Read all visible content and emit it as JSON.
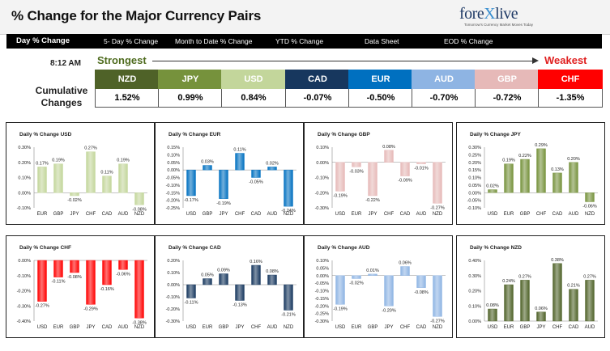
{
  "header": {
    "title": "% Change for the Major Currency Pairs",
    "logo_text_main": "fore",
    "logo_text_x": "X",
    "logo_text_end": "live",
    "logo_tagline": "Tomorrow's Currency Market Moves Today"
  },
  "tabs": [
    {
      "label": "Day % Change",
      "active": true
    },
    {
      "label": "5- Day % Change",
      "active": false
    },
    {
      "label": "Month to Date % Change",
      "active": false
    },
    {
      "label": "YTD % Change",
      "active": false
    },
    {
      "label": "Data Sheet",
      "active": false
    },
    {
      "label": "EOD % Change",
      "active": false
    }
  ],
  "time": "8:12 AM",
  "strongest_label": "Strongest",
  "weakest_label": "Weakest",
  "cumulative_label": "Cumulative Changes",
  "currencies": [
    {
      "name": "NZD",
      "value": "1.52%",
      "color": "#4f6228"
    },
    {
      "name": "JPY",
      "value": "0.99%",
      "color": "#76923c"
    },
    {
      "name": "USD",
      "value": "0.84%",
      "color": "#c3d69b"
    },
    {
      "name": "CAD",
      "value": "-0.07%",
      "color": "#17375e"
    },
    {
      "name": "EUR",
      "value": "-0.50%",
      "color": "#0070c0"
    },
    {
      "name": "AUD",
      "value": "-0.70%",
      "color": "#8eb4e3"
    },
    {
      "name": "GBP",
      "value": "-0.72%",
      "color": "#e6b9b8"
    },
    {
      "name": "CHF",
      "value": "-1.35%",
      "color": "#ff0000"
    }
  ],
  "chart_data": [
    {
      "type": "bar",
      "title": "Daily % Change USD",
      "categories": [
        "EUR",
        "GBP",
        "JPY",
        "CHF",
        "CAD",
        "AUD",
        "NZD"
      ],
      "values": [
        0.17,
        0.19,
        -0.02,
        0.27,
        0.11,
        0.19,
        -0.08
      ],
      "labels": [
        "0.17%",
        "0.19%",
        "-0.02%",
        "0.27%",
        "0.11%",
        "0.19%",
        "-0.08%"
      ],
      "ticks": [
        "0.30%",
        "0.20%",
        "0.10%",
        "0.00%",
        "-0.10%"
      ],
      "ylim": [
        -0.1,
        0.3
      ],
      "color": "#c3d69b"
    },
    {
      "type": "bar",
      "title": "Daily % Change EUR",
      "categories": [
        "USD",
        "GBP",
        "JPY",
        "CHF",
        "CAD",
        "AUD",
        "NZD"
      ],
      "values": [
        -0.17,
        0.03,
        -0.19,
        0.11,
        -0.05,
        0.02,
        -0.24
      ],
      "labels": [
        "-0.17%",
        "0.03%",
        "-0.19%",
        "0.11%",
        "-0.05%",
        "0.02%",
        "-0.24%"
      ],
      "ticks": [
        "0.15%",
        "0.10%",
        "0.05%",
        "0.00%",
        "-0.05%",
        "-0.10%",
        "-0.15%",
        "-0.20%",
        "-0.25%"
      ],
      "ylim": [
        -0.25,
        0.15
      ],
      "color": "#0070c0"
    },
    {
      "type": "bar",
      "title": "Daily % Change GBP",
      "categories": [
        "USD",
        "EUR",
        "JPY",
        "CHF",
        "CAD",
        "AUD",
        "NZD"
      ],
      "values": [
        -0.19,
        -0.03,
        -0.22,
        0.08,
        -0.09,
        -0.01,
        -0.27
      ],
      "labels": [
        "-0.19%",
        "-0.03%",
        "-0.22%",
        "0.08%",
        "-0.09%",
        "-0.01%",
        "-0.27%"
      ],
      "ticks": [
        "0.10%",
        "0.00%",
        "-0.10%",
        "-0.20%",
        "-0.30%"
      ],
      "ylim": [
        -0.3,
        0.1
      ],
      "color": "#e6b9b8"
    },
    {
      "type": "bar",
      "title": "Daily % Change JPY",
      "categories": [
        "USD",
        "EUR",
        "GBP",
        "CHF",
        "CAD",
        "AUD",
        "NZD"
      ],
      "values": [
        0.02,
        0.19,
        0.22,
        0.29,
        0.13,
        0.2,
        -0.06
      ],
      "labels": [
        "0.02%",
        "0.19%",
        "0.22%",
        "0.29%",
        "0.13%",
        "0.20%",
        "-0.06%"
      ],
      "ticks": [
        "0.30%",
        "0.25%",
        "0.20%",
        "0.15%",
        "0.10%",
        "0.05%",
        "0.00%",
        "-0.05%",
        "-0.10%"
      ],
      "ylim": [
        -0.1,
        0.3
      ],
      "color": "#76923c"
    },
    {
      "type": "bar",
      "title": "Daily % Change CHF",
      "categories": [
        "USD",
        "EUR",
        "GBP",
        "JPY",
        "CAD",
        "AUD",
        "NZD"
      ],
      "values": [
        -0.27,
        -0.11,
        -0.08,
        -0.29,
        -0.16,
        -0.06,
        -0.38
      ],
      "labels": [
        "-0.27%",
        "-0.11%",
        "-0.08%",
        "-0.29%",
        "-0.16%",
        "-0.06%",
        "-0.38%"
      ],
      "ticks": [
        "0.00%",
        "-0.10%",
        "-0.20%",
        "-0.30%",
        "-0.40%"
      ],
      "ylim": [
        -0.4,
        0.0
      ],
      "color": "#ff0000"
    },
    {
      "type": "bar",
      "title": "Daily % Change CAD",
      "categories": [
        "USD",
        "EUR",
        "GBP",
        "JPY",
        "CHF",
        "AUD",
        "NZD"
      ],
      "values": [
        -0.11,
        0.05,
        0.09,
        -0.13,
        0.16,
        0.08,
        -0.21
      ],
      "labels": [
        "-0.11%",
        "0.05%",
        "0.09%",
        "-0.13%",
        "0.16%",
        "0.08%",
        "-0.21%"
      ],
      "ticks": [
        "0.20%",
        "0.10%",
        "0.00%",
        "-0.10%",
        "-0.20%",
        "-0.30%"
      ],
      "ylim": [
        -0.3,
        0.2
      ],
      "color": "#17375e"
    },
    {
      "type": "bar",
      "title": "Daily % Change AUD",
      "categories": [
        "USD",
        "EUR",
        "GBP",
        "JPY",
        "CHF",
        "CAD",
        "NZD"
      ],
      "values": [
        -0.19,
        -0.02,
        0.01,
        -0.2,
        0.06,
        -0.08,
        -0.27
      ],
      "labels": [
        "-0.19%",
        "-0.02%",
        "0.01%",
        "-0.20%",
        "0.06%",
        "-0.08%",
        "-0.27%"
      ],
      "ticks": [
        "0.10%",
        "0.05%",
        "0.00%",
        "-0.05%",
        "-0.10%",
        "-0.15%",
        "-0.20%",
        "-0.25%",
        "-0.30%"
      ],
      "ylim": [
        -0.3,
        0.1
      ],
      "color": "#8eb4e3"
    },
    {
      "type": "bar",
      "title": "Daily % Change NZD",
      "categories": [
        "USD",
        "EUR",
        "GBP",
        "JPY",
        "CHF",
        "CAD",
        "AUD"
      ],
      "values": [
        0.08,
        0.24,
        0.27,
        0.06,
        0.38,
        0.21,
        0.27
      ],
      "labels": [
        "0.08%",
        "0.24%",
        "0.27%",
        "0.06%",
        "0.38%",
        "0.21%",
        "0.27%"
      ],
      "ticks": [
        "0.40%",
        "0.30%",
        "0.20%",
        "0.10%",
        "0.00%"
      ],
      "ylim": [
        0.0,
        0.4
      ],
      "color": "#4f6228"
    }
  ]
}
